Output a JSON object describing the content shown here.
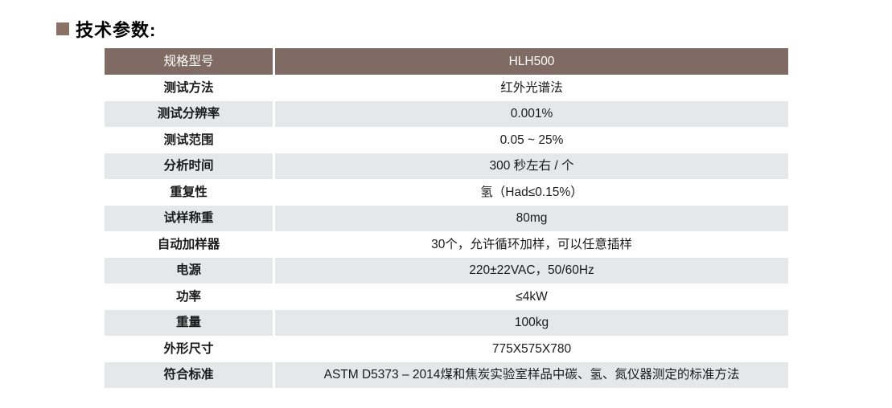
{
  "title": {
    "bullet_icon": "square-bullet",
    "text": "技术参数:"
  },
  "table": {
    "header": {
      "label": "规格型号",
      "value": "HLH500"
    },
    "rows": [
      {
        "label": "测试方法",
        "value": "红外光谱法"
      },
      {
        "label": "测试分辨率",
        "value": "0.001%"
      },
      {
        "label": "测试范围",
        "value": "0.05 ~ 25%"
      },
      {
        "label": "分析时间",
        "value": "300 秒左右 / 个"
      },
      {
        "label": "重复性",
        "value": "氢（Had≤0.15%）"
      },
      {
        "label": "试样称重",
        "value": "80mg"
      },
      {
        "label": "自动加样器",
        "value": "30个，允许循环加样，可以任意插样"
      },
      {
        "label": "电源",
        "value": "220±22VAC，50/60Hz"
      },
      {
        "label": "功率",
        "value": "≤4kW"
      },
      {
        "label": "重量",
        "value": "100kg"
      },
      {
        "label": "外形尺寸",
        "value": "775X575X780"
      },
      {
        "label": "符合标准",
        "value": "ASTM D5373 – 2014煤和焦炭实验室样品中碳、氢、氮仪器测定的标准方法"
      }
    ],
    "colors": {
      "header_bg": "#7F6B63",
      "alt_row_bg": "#E6E7E8",
      "bullet": "#8A7065",
      "divider": "#FFFFFF"
    }
  }
}
